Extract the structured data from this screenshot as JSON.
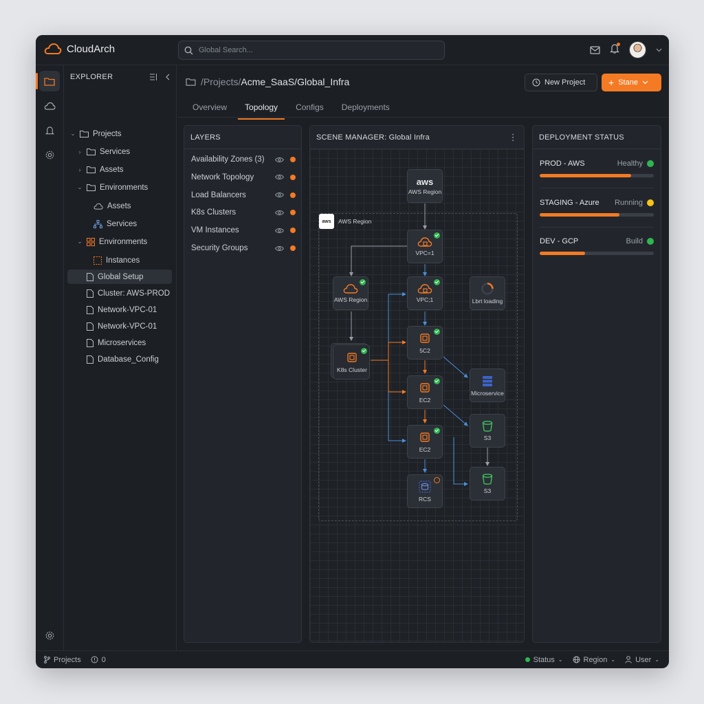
{
  "app": {
    "name": "CloudArch"
  },
  "search": {
    "placeholder": "Global Search..."
  },
  "explorer": {
    "title": "EXPLORER",
    "items": [
      {
        "label": "Projects"
      },
      {
        "label": "Services"
      },
      {
        "label": "Assets"
      },
      {
        "label": "Environments"
      },
      {
        "label": "Assets"
      },
      {
        "label": "Services"
      },
      {
        "label": "Environments"
      },
      {
        "label": "Instances"
      },
      {
        "label": "Global Setup"
      },
      {
        "label": "Cluster: AWS-PROD"
      },
      {
        "label": "Network-VPC-01"
      },
      {
        "label": "Network-VPC-01"
      },
      {
        "label": "Microservices"
      },
      {
        "label": "Database_Config"
      }
    ]
  },
  "breadcrumb": {
    "prefix": "/Projects/",
    "current": "Acme_SaaS/Global_Infra"
  },
  "toolbar": {
    "new_project": "New Project",
    "primary": "Stane"
  },
  "tabs": [
    {
      "label": "Overview"
    },
    {
      "label": "Topology"
    },
    {
      "label": "Configs"
    },
    {
      "label": "Deployments"
    }
  ],
  "layers": {
    "title": "LAYERS",
    "items": [
      {
        "label": "Availability Zones (3)"
      },
      {
        "label": "Network Topology"
      },
      {
        "label": "Load Balancers"
      },
      {
        "label": "K8s Clusters"
      },
      {
        "label": "VM Instances"
      },
      {
        "label": "Security Groups"
      }
    ],
    "dot_color": "#f47a24"
  },
  "scene": {
    "title": "SCENE MANAGER: Global Infra",
    "region_label": "AWS Region",
    "region_badge": "aws",
    "nodes": {
      "aws_top": "AWS Region",
      "vpc1": "VPC=1",
      "aws_region": "AWS Region",
      "vpc2": "VPC;1",
      "loading": "Lbrt loading",
      "k8s": "K8s Cluster",
      "ec2_a": "5C2",
      "ec2_b": "EC2",
      "ec2_c": "EC2",
      "micro": "Microservice",
      "s3_a": "S3",
      "s3_b": "S3",
      "rds": "RCS",
      "aws_logo": "aws"
    }
  },
  "deployment": {
    "title": "DEPLOYMENT STATUS",
    "items": [
      {
        "name": "PROD - AWS",
        "state": "Healthy",
        "progress": 0.8,
        "color": "#2fb64f"
      },
      {
        "name": "STAGING - Azure",
        "state": "Running",
        "progress": 0.7,
        "color": "#f5c518"
      },
      {
        "name": "DEV - GCP",
        "state": "Build",
        "progress": 0.4,
        "color": "#2fb64f"
      }
    ]
  },
  "footer": {
    "projects": "Projects",
    "alerts": "0",
    "status": "Status",
    "region": "Region",
    "user": "User"
  },
  "colors": {
    "accent": "#f47a24",
    "ok": "#2fb64f",
    "warn": "#f5c518",
    "edge_blue": "#4a90d9"
  }
}
